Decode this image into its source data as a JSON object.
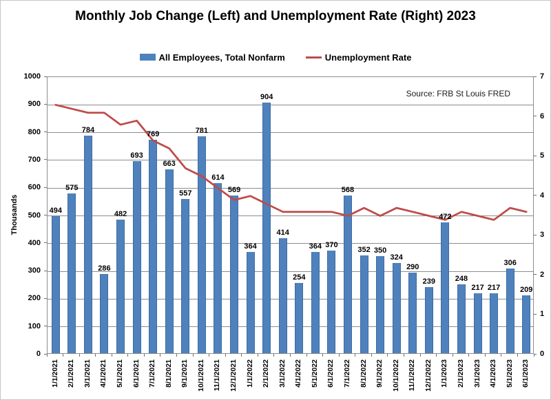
{
  "title": "Monthly Job Change (Left) and Unemployment Rate (Right) 2023",
  "source_note": "Source: FRB St Louis FRED",
  "legend": {
    "items": [
      {
        "label": "All Employees, Total Nonfarm",
        "swatch": "bar",
        "color": "#4f81bd"
      },
      {
        "label": "Unemployment Rate",
        "swatch": "line",
        "color": "#be4b48"
      }
    ]
  },
  "chart_data": {
    "type": "combo",
    "categories": [
      "1/1/2021",
      "2/1/2021",
      "3/1/2021",
      "4/1/2021",
      "5/1/2021",
      "6/1/2021",
      "7/1/2021",
      "8/1/2021",
      "9/1/2021",
      "10/1/2021",
      "11/1/2021",
      "12/1/2021",
      "1/1/2022",
      "2/1/2022",
      "3/1/2022",
      "4/1/2022",
      "5/1/2022",
      "6/1/2022",
      "7/1/2022",
      "8/1/2022",
      "9/1/2022",
      "10/1/2022",
      "11/1/2022",
      "12/1/2022",
      "1/1/2023",
      "2/1/2023",
      "3/1/2023",
      "4/1/2023",
      "5/1/2023",
      "6/1/2023"
    ],
    "series": [
      {
        "name": "All Employees, Total Nonfarm",
        "type": "bar",
        "axis": "left",
        "color": "#4f81bd",
        "values": [
          494,
          575,
          784,
          286,
          482,
          693,
          769,
          663,
          557,
          781,
          614,
          569,
          364,
          904,
          414,
          254,
          364,
          370,
          568,
          352,
          350,
          324,
          290,
          239,
          472,
          248,
          217,
          217,
          306,
          209
        ]
      },
      {
        "name": "Unemployment Rate",
        "type": "line",
        "axis": "right",
        "color": "#be4b48",
        "values": [
          6.3,
          6.2,
          6.1,
          6.1,
          5.8,
          5.9,
          5.4,
          5.2,
          4.7,
          4.5,
          4.2,
          3.9,
          4.0,
          3.8,
          3.6,
          3.6,
          3.6,
          3.6,
          3.5,
          3.7,
          3.5,
          3.7,
          3.6,
          3.5,
          3.4,
          3.6,
          3.5,
          3.4,
          3.7,
          3.6
        ]
      }
    ],
    "left_axis": {
      "label": "Thousands",
      "min": 0,
      "max": 1000,
      "step": 100
    },
    "right_axis": {
      "min": 0,
      "max": 7,
      "step": 1
    },
    "grid": true,
    "legend_position": "top",
    "data_labels": "bar values shown above bars"
  },
  "colors": {
    "bar": "#4f81bd",
    "bar_border": "#3d6ba3",
    "line": "#be4b48",
    "grid": "#8c8c8c"
  }
}
